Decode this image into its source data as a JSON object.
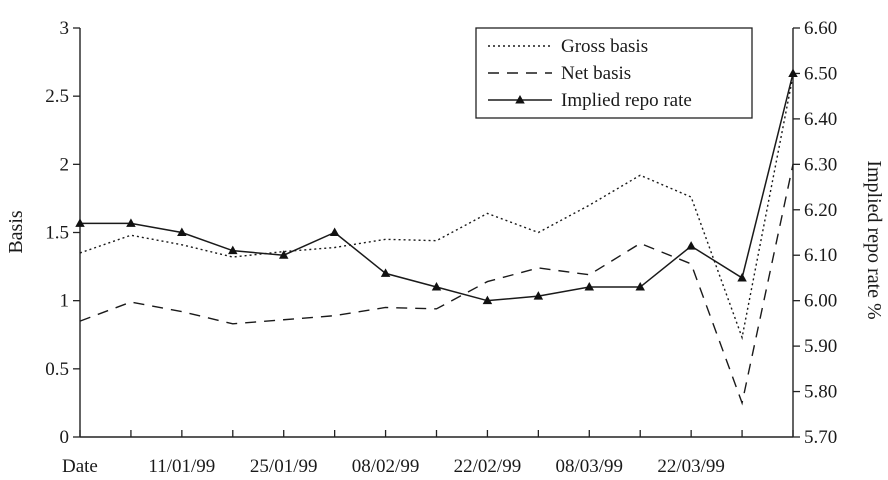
{
  "chart_data": {
    "type": "line",
    "x_first_label": "Date",
    "x_tick_labels": [
      "",
      "",
      "11/01/99",
      "",
      "25/01/99",
      "",
      "08/02/99",
      "",
      "22/02/99",
      "",
      "08/03/99",
      "",
      "22/03/99",
      "",
      ""
    ],
    "left_axis": {
      "label": "Basis",
      "ylim": [
        0,
        3
      ],
      "ticks": [
        "0",
        "0.5",
        "1",
        "1.5",
        "2",
        "2.5",
        "3"
      ]
    },
    "right_axis": {
      "label": "Implied repo rate %",
      "ylim": [
        5.7,
        6.6
      ],
      "ticks": [
        "5.70",
        "5.80",
        "5.90",
        "6.00",
        "6.10",
        "6.20",
        "6.30",
        "6.40",
        "6.50",
        "6.60"
      ]
    },
    "series": [
      {
        "name": "Gross basis",
        "axis": "left",
        "style": "dotted",
        "values": [
          1.35,
          1.48,
          1.41,
          1.32,
          1.36,
          1.39,
          1.45,
          1.44,
          1.64,
          1.5,
          1.7,
          1.92,
          1.76,
          0.73,
          2.65
        ]
      },
      {
        "name": "Net basis",
        "axis": "left",
        "style": "dashed",
        "values": [
          0.85,
          0.99,
          0.92,
          0.83,
          0.86,
          0.89,
          0.95,
          0.94,
          1.14,
          1.24,
          1.19,
          1.42,
          1.27,
          0.25,
          2.0
        ]
      },
      {
        "name": "Implied repo rate",
        "axis": "right",
        "style": "solid-triangle",
        "values": [
          6.17,
          6.17,
          6.15,
          6.11,
          6.1,
          6.15,
          6.06,
          6.03,
          6.0,
          6.01,
          6.03,
          6.03,
          6.12,
          6.05,
          6.5
        ]
      }
    ],
    "legend": {
      "position": "top-right"
    }
  }
}
